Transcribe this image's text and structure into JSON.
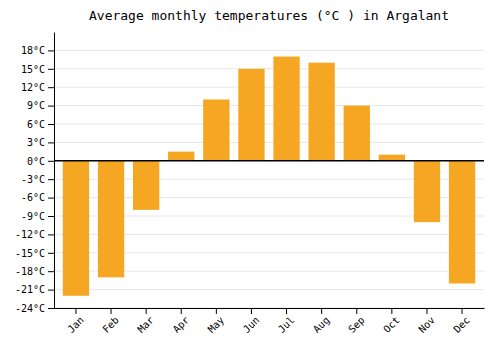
{
  "chart_data": {
    "type": "bar",
    "title": "Average monthly temperatures (°C ) in Argalant",
    "categories": [
      "Jan",
      "Feb",
      "Mar",
      "Apr",
      "May",
      "Jun",
      "Jul",
      "Aug",
      "Sep",
      "Oct",
      "Nov",
      "Dec"
    ],
    "values": [
      -22,
      -19,
      -8,
      1.5,
      10,
      15,
      17,
      16,
      9,
      1,
      -10,
      -20
    ],
    "color": "#F5A623",
    "ylim": [
      -24,
      21
    ],
    "yticks": [
      {
        "value": -24,
        "label": "-24°C"
      },
      {
        "value": -21,
        "label": "-21°C"
      },
      {
        "value": -18,
        "label": "-18°C"
      },
      {
        "value": -15,
        "label": "-15°C"
      },
      {
        "value": -12,
        "label": "-12°C"
      },
      {
        "value": -9,
        "label": "-9°C"
      },
      {
        "value": -6,
        "label": "-6°C"
      },
      {
        "value": -3,
        "label": "-3°C"
      },
      {
        "value": 0,
        "label": "0°C"
      },
      {
        "value": 3,
        "label": "3°C"
      },
      {
        "value": 6,
        "label": "6°C"
      },
      {
        "value": 9,
        "label": "9°C"
      },
      {
        "value": 12,
        "label": "12°C"
      },
      {
        "value": 15,
        "label": "15°C"
      },
      {
        "value": 18,
        "label": "18°C"
      }
    ],
    "grid": true
  }
}
